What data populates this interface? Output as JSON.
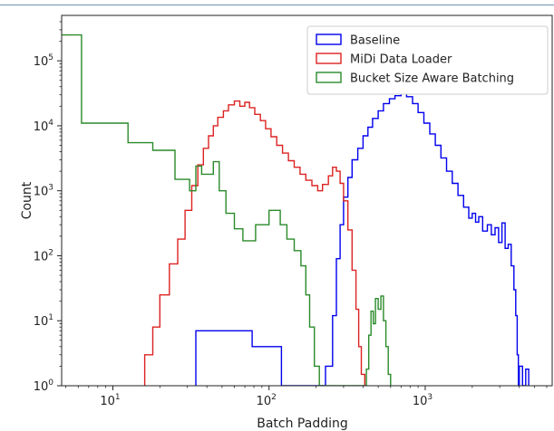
{
  "chart_data": {
    "type": "histogram-step",
    "title": "",
    "xlabel": "Batch Padding",
    "ylabel": "Count",
    "x_scale": "log",
    "y_scale": "log",
    "xlim": [
      4.7,
      6500
    ],
    "ylim": [
      1,
      500000
    ],
    "grid": false,
    "legend_position": "top-right",
    "x_ticks": [
      {
        "value": 10,
        "label_base": "10",
        "label_exp": "1"
      },
      {
        "value": 100,
        "label_base": "10",
        "label_exp": "2"
      },
      {
        "value": 1000,
        "label_base": "10",
        "label_exp": "3"
      }
    ],
    "y_ticks": [
      {
        "value": 1,
        "label_base": "10",
        "label_exp": "0"
      },
      {
        "value": 10,
        "label_base": "10",
        "label_exp": "1"
      },
      {
        "value": 100,
        "label_base": "10",
        "label_exp": "2"
      },
      {
        "value": 1000,
        "label_base": "10",
        "label_exp": "3"
      },
      {
        "value": 10000,
        "label_base": "10",
        "label_exp": "4"
      },
      {
        "value": 100000,
        "label_base": "10",
        "label_exp": "5"
      }
    ],
    "series": [
      {
        "name": "Baseline",
        "color": "#0000ee",
        "points": [
          [
            34,
            1
          ],
          [
            34,
            7
          ],
          [
            78,
            7
          ],
          [
            78,
            4
          ],
          [
            120,
            4
          ],
          [
            120,
            1
          ],
          [
            230,
            1
          ],
          [
            230,
            2
          ],
          [
            255,
            2
          ],
          [
            255,
            12
          ],
          [
            270,
            12
          ],
          [
            270,
            90
          ],
          [
            285,
            90
          ],
          [
            285,
            300
          ],
          [
            300,
            300
          ],
          [
            300,
            800
          ],
          [
            320,
            800
          ],
          [
            320,
            1600
          ],
          [
            340,
            1600
          ],
          [
            340,
            3000
          ],
          [
            370,
            3000
          ],
          [
            370,
            4500
          ],
          [
            400,
            4500
          ],
          [
            400,
            7000
          ],
          [
            430,
            7000
          ],
          [
            430,
            9500
          ],
          [
            460,
            9500
          ],
          [
            460,
            13000
          ],
          [
            500,
            13000
          ],
          [
            500,
            17000
          ],
          [
            540,
            17000
          ],
          [
            540,
            22000
          ],
          [
            590,
            22000
          ],
          [
            590,
            26000
          ],
          [
            640,
            26000
          ],
          [
            640,
            29000
          ],
          [
            700,
            29000
          ],
          [
            700,
            31000
          ],
          [
            760,
            31000
          ],
          [
            760,
            28000
          ],
          [
            830,
            28000
          ],
          [
            830,
            22000
          ],
          [
            900,
            22000
          ],
          [
            900,
            16000
          ],
          [
            980,
            16000
          ],
          [
            980,
            11000
          ],
          [
            1070,
            11000
          ],
          [
            1070,
            7500
          ],
          [
            1160,
            7500
          ],
          [
            1160,
            5000
          ],
          [
            1260,
            5000
          ],
          [
            1260,
            3200
          ],
          [
            1370,
            3200
          ],
          [
            1370,
            2000
          ],
          [
            1490,
            2000
          ],
          [
            1490,
            1300
          ],
          [
            1620,
            1300
          ],
          [
            1620,
            850
          ],
          [
            1760,
            850
          ],
          [
            1760,
            560
          ],
          [
            1900,
            560
          ],
          [
            1900,
            380
          ],
          [
            2000,
            380
          ],
          [
            2000,
            450
          ],
          [
            2100,
            450
          ],
          [
            2100,
            330
          ],
          [
            2200,
            330
          ],
          [
            2200,
            400
          ],
          [
            2330,
            400
          ],
          [
            2330,
            240
          ],
          [
            2500,
            240
          ],
          [
            2500,
            300
          ],
          [
            2650,
            300
          ],
          [
            2650,
            210
          ],
          [
            2800,
            210
          ],
          [
            2800,
            270
          ],
          [
            2950,
            270
          ],
          [
            2950,
            160
          ],
          [
            3100,
            160
          ],
          [
            3100,
            320
          ],
          [
            3250,
            320
          ],
          [
            3250,
            130
          ],
          [
            3400,
            130
          ],
          [
            3400,
            150
          ],
          [
            3550,
            150
          ],
          [
            3550,
            70
          ],
          [
            3700,
            70
          ],
          [
            3700,
            30
          ],
          [
            3800,
            30
          ],
          [
            3800,
            12
          ],
          [
            3880,
            12
          ],
          [
            3880,
            3
          ],
          [
            3950,
            3
          ],
          [
            3950,
            1
          ],
          [
            4000,
            1
          ],
          [
            4000,
            2
          ],
          [
            4200,
            2
          ],
          [
            4200,
            1
          ],
          [
            4400,
            1
          ],
          [
            4400,
            1.8
          ],
          [
            4600,
            1.8
          ],
          [
            4600,
            1
          ]
        ]
      },
      {
        "name": "MiDi Data Loader",
        "color": "#dd2222",
        "points": [
          [
            16,
            1
          ],
          [
            16,
            3
          ],
          [
            18,
            3
          ],
          [
            18,
            8
          ],
          [
            20,
            8
          ],
          [
            20,
            25
          ],
          [
            23,
            25
          ],
          [
            23,
            75
          ],
          [
            26,
            75
          ],
          [
            26,
            180
          ],
          [
            29,
            180
          ],
          [
            29,
            500
          ],
          [
            32,
            500
          ],
          [
            32,
            1200
          ],
          [
            35,
            1200
          ],
          [
            35,
            2500
          ],
          [
            38,
            2500
          ],
          [
            38,
            4500
          ],
          [
            41,
            4500
          ],
          [
            41,
            7000
          ],
          [
            44,
            7000
          ],
          [
            44,
            10000
          ],
          [
            47,
            10000
          ],
          [
            47,
            13500
          ],
          [
            51,
            13500
          ],
          [
            51,
            17000
          ],
          [
            55,
            17000
          ],
          [
            55,
            21000
          ],
          [
            60,
            21000
          ],
          [
            60,
            24000
          ],
          [
            65,
            24000
          ],
          [
            65,
            20000
          ],
          [
            70,
            20000
          ],
          [
            70,
            23000
          ],
          [
            75,
            23000
          ],
          [
            75,
            19000
          ],
          [
            81,
            19000
          ],
          [
            81,
            15000
          ],
          [
            88,
            15000
          ],
          [
            88,
            12000
          ],
          [
            95,
            12000
          ],
          [
            95,
            9000
          ],
          [
            103,
            9000
          ],
          [
            103,
            6800
          ],
          [
            112,
            6800
          ],
          [
            112,
            5000
          ],
          [
            122,
            5000
          ],
          [
            122,
            3800
          ],
          [
            133,
            3800
          ],
          [
            133,
            2900
          ],
          [
            145,
            2900
          ],
          [
            145,
            2300
          ],
          [
            158,
            2300
          ],
          [
            158,
            1800
          ],
          [
            172,
            1800
          ],
          [
            172,
            1450
          ],
          [
            188,
            1450
          ],
          [
            188,
            1200
          ],
          [
            205,
            1200
          ],
          [
            205,
            1000
          ],
          [
            220,
            1000
          ],
          [
            220,
            1250
          ],
          [
            240,
            1250
          ],
          [
            240,
            1700
          ],
          [
            255,
            1700
          ],
          [
            255,
            2300
          ],
          [
            270,
            2300
          ],
          [
            270,
            2000
          ],
          [
            285,
            2000
          ],
          [
            285,
            1300
          ],
          [
            300,
            1300
          ],
          [
            300,
            700
          ],
          [
            320,
            700
          ],
          [
            320,
            250
          ],
          [
            340,
            250
          ],
          [
            340,
            60
          ],
          [
            360,
            60
          ],
          [
            360,
            15
          ],
          [
            375,
            15
          ],
          [
            375,
            4
          ],
          [
            390,
            4
          ],
          [
            390,
            1.5
          ],
          [
            410,
            1.5
          ],
          [
            410,
            1
          ]
        ]
      },
      {
        "name": "Bucket Size Aware Batching",
        "color": "#2a8a2a",
        "points": [
          [
            4.7,
            250000
          ],
          [
            6.3,
            250000
          ],
          [
            6.3,
            11000
          ],
          [
            12.5,
            11000
          ],
          [
            12.5,
            5500
          ],
          [
            18,
            5500
          ],
          [
            18,
            4200
          ],
          [
            25,
            4200
          ],
          [
            25,
            1500
          ],
          [
            31,
            1500
          ],
          [
            31,
            1000
          ],
          [
            34,
            1000
          ],
          [
            34,
            2400
          ],
          [
            37,
            2400
          ],
          [
            37,
            1800
          ],
          [
            44,
            1800
          ],
          [
            44,
            2800
          ],
          [
            48,
            2800
          ],
          [
            48,
            1000
          ],
          [
            53,
            1000
          ],
          [
            53,
            450
          ],
          [
            60,
            450
          ],
          [
            60,
            260
          ],
          [
            68,
            260
          ],
          [
            68,
            170
          ],
          [
            82,
            170
          ],
          [
            82,
            300
          ],
          [
            100,
            300
          ],
          [
            100,
            500
          ],
          [
            118,
            500
          ],
          [
            118,
            300
          ],
          [
            130,
            300
          ],
          [
            130,
            180
          ],
          [
            145,
            180
          ],
          [
            145,
            120
          ],
          [
            160,
            120
          ],
          [
            160,
            70
          ],
          [
            172,
            70
          ],
          [
            172,
            25
          ],
          [
            182,
            25
          ],
          [
            182,
            8
          ],
          [
            195,
            8
          ],
          [
            195,
            2
          ],
          [
            210,
            2
          ],
          [
            210,
            1
          ],
          [
            420,
            1
          ],
          [
            420,
            1.8
          ],
          [
            435,
            1.8
          ],
          [
            435,
            6
          ],
          [
            450,
            6
          ],
          [
            450,
            14
          ],
          [
            465,
            14
          ],
          [
            465,
            9
          ],
          [
            480,
            9
          ],
          [
            480,
            22
          ],
          [
            500,
            22
          ],
          [
            500,
            15
          ],
          [
            520,
            15
          ],
          [
            520,
            24
          ],
          [
            540,
            24
          ],
          [
            540,
            10
          ],
          [
            560,
            10
          ],
          [
            560,
            4
          ],
          [
            580,
            4
          ],
          [
            580,
            1.5
          ],
          [
            600,
            1.5
          ],
          [
            600,
            1
          ]
        ]
      }
    ]
  }
}
